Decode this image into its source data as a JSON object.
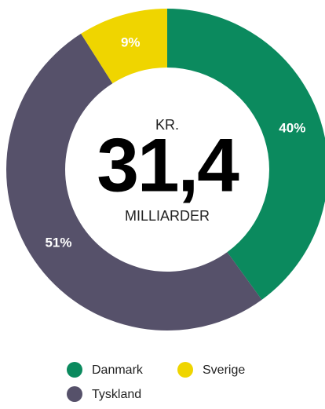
{
  "chart_data": {
    "type": "donut",
    "categories": [
      "Danmark",
      "Tyskland",
      "Sverige"
    ],
    "values": [
      40,
      51,
      9
    ],
    "value_labels": [
      "40%",
      "51%",
      "9%"
    ],
    "colors": [
      "#0b8a5e",
      "#56516a",
      "#efd500"
    ],
    "center_top": "KR.",
    "center_value": "31,4",
    "center_bottom": "MILLIARDER"
  }
}
